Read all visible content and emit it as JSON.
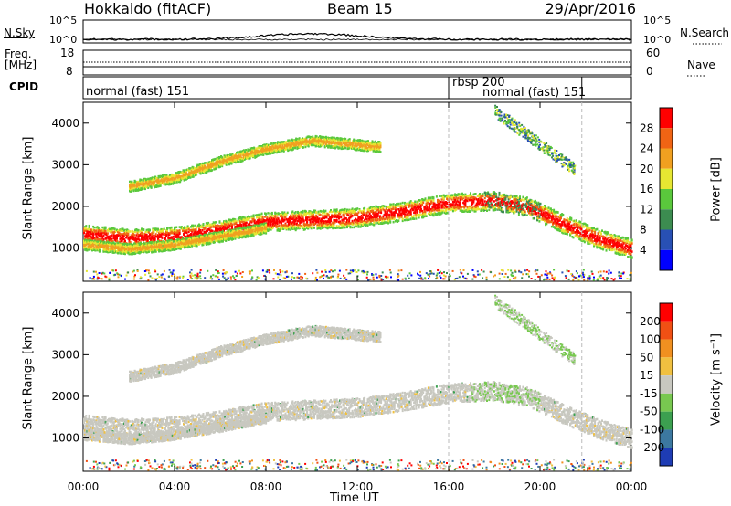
{
  "header": {
    "radar": "Hokkaido (fitACF)",
    "beam": "Beam 15",
    "date": "29/Apr/2016"
  },
  "panels": {
    "nsky": {
      "label": "N.Sky",
      "ticks": [
        "10^5",
        "10^0"
      ]
    },
    "nsearch": {
      "label": "N.Search",
      "ticks": [
        "10^5",
        "10^0"
      ]
    },
    "freq": {
      "label": "Freq.",
      "unit": "[MHz]",
      "ticks": [
        "18",
        "8"
      ]
    },
    "nave": {
      "label": "Nave",
      "ticks": [
        "60",
        "0"
      ]
    },
    "cpid": {
      "label": "CPID",
      "modes": [
        {
          "name": "normal (fast) 151",
          "start": "00:00",
          "end": "16:00"
        },
        {
          "name": "rbsp 200",
          "start": "16:00",
          "end": "16:00"
        },
        {
          "name": "normal (fast) 151",
          "start": "16:00",
          "end": "21:50"
        }
      ]
    }
  },
  "chart_data": [
    {
      "type": "heatmap",
      "title": "",
      "xlabel": "",
      "ylabel": "Slant Range [km]",
      "x_ticks": [
        "00:00",
        "04:00",
        "08:00",
        "12:00",
        "16:00",
        "20:00",
        "00:00"
      ],
      "xlim": [
        0,
        24
      ],
      "y_ticks": [
        "1000",
        "2000",
        "3000",
        "4000"
      ],
      "ylim": [
        200,
        4500
      ],
      "colorbar": {
        "label": "Power [dB]",
        "ticks": [
          "4",
          "8",
          "12",
          "16",
          "20",
          "24",
          "28"
        ],
        "colors": [
          "#0000ff",
          "#2850b4",
          "#3c8c50",
          "#5ac83c",
          "#e6e632",
          "#f0a020",
          "#f06414",
          "#ff0000"
        ]
      },
      "echo_bands": [
        {
          "name": "main",
          "points": [
            [
              0,
              1350
            ],
            [
              2,
              1250
            ],
            [
              4,
              1300
            ],
            [
              6,
              1450
            ],
            [
              8,
              1650
            ],
            [
              10,
              1700
            ],
            [
              12,
              1750
            ],
            [
              14,
              1900
            ],
            [
              16,
              2100
            ],
            [
              18,
              2150
            ],
            [
              19.5,
              2000
            ],
            [
              21,
              1600
            ],
            [
              22.5,
              1250
            ],
            [
              24,
              1000
            ]
          ],
          "width": 450
        },
        {
          "name": "upper-lobe",
          "points": [
            [
              2,
              2500
            ],
            [
              4,
              2700
            ],
            [
              6,
              3100
            ],
            [
              8,
              3400
            ],
            [
              10,
              3600
            ],
            [
              12,
              3500
            ],
            [
              13,
              3450
            ]
          ],
          "width": 250
        },
        {
          "name": "lower-lobe",
          "points": [
            [
              0,
              1100
            ],
            [
              2,
              1000
            ],
            [
              4,
              1100
            ],
            [
              6,
              1300
            ],
            [
              8,
              1500
            ]
          ],
          "width": 250
        }
      ]
    },
    {
      "type": "heatmap",
      "title": "",
      "xlabel": "Time UT",
      "ylabel": "Slant Range [km]",
      "x_ticks": [
        "00:00",
        "04:00",
        "08:00",
        "12:00",
        "16:00",
        "20:00",
        "00:00"
      ],
      "xlim": [
        0,
        24
      ],
      "y_ticks": [
        "1000",
        "2000",
        "3000",
        "4000"
      ],
      "ylim": [
        200,
        4500
      ],
      "colorbar": {
        "label": "Velocity [m s⁻¹]",
        "ticks": [
          "200",
          "100",
          "50",
          "15",
          "-15",
          "-50",
          "-100",
          "-200"
        ],
        "colors": [
          "#1e3cb4",
          "#3c78a0",
          "#3ca050",
          "#78c850",
          "#c8c8c0",
          "#f0c040",
          "#f09020",
          "#f05014",
          "#ff0000"
        ]
      }
    }
  ]
}
